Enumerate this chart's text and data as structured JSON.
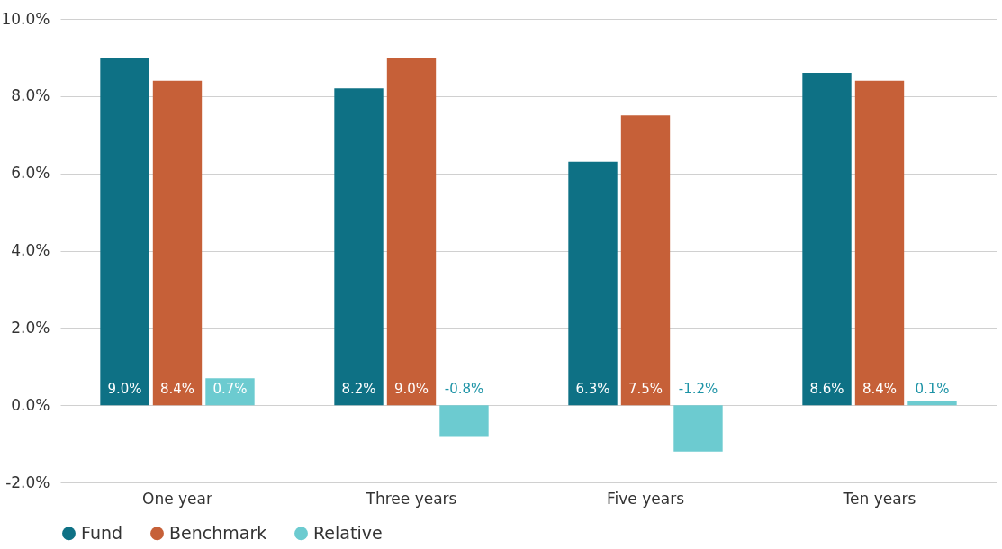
{
  "chart_data": {
    "type": "bar",
    "categories": [
      "One year",
      "Three years",
      "Five years",
      "Ten years"
    ],
    "series": [
      {
        "name": "Fund",
        "color": "#0e7185",
        "values": [
          9.0,
          8.2,
          6.3,
          8.6
        ],
        "value_labels": [
          "9.0%",
          "8.2%",
          "6.3%",
          "8.6%"
        ]
      },
      {
        "name": "Benchmark",
        "color": "#c66038",
        "values": [
          8.4,
          9.0,
          7.5,
          8.4
        ],
        "value_labels": [
          "8.4%",
          "9.0%",
          "7.5%",
          "8.4%"
        ]
      },
      {
        "name": "Relative",
        "color": "#6ccbd0",
        "values": [
          0.7,
          -0.8,
          -1.2,
          0.1
        ],
        "value_labels": [
          "0.7%",
          "-0.8%",
          "-1.2%",
          "0.1%"
        ]
      }
    ],
    "ylim": [
      -2,
      10
    ],
    "yticks": [
      {
        "value": -2,
        "label": "-2.0%"
      },
      {
        "value": 0,
        "label": "0.0%"
      },
      {
        "value": 2,
        "label": "2.0%"
      },
      {
        "value": 4,
        "label": "4.0%"
      },
      {
        "value": 6,
        "label": "6.0%"
      },
      {
        "value": 8,
        "label": "8.0%"
      },
      {
        "value": 10,
        "label": "10.0%"
      }
    ],
    "grid": "y",
    "legend": "bottom left"
  }
}
